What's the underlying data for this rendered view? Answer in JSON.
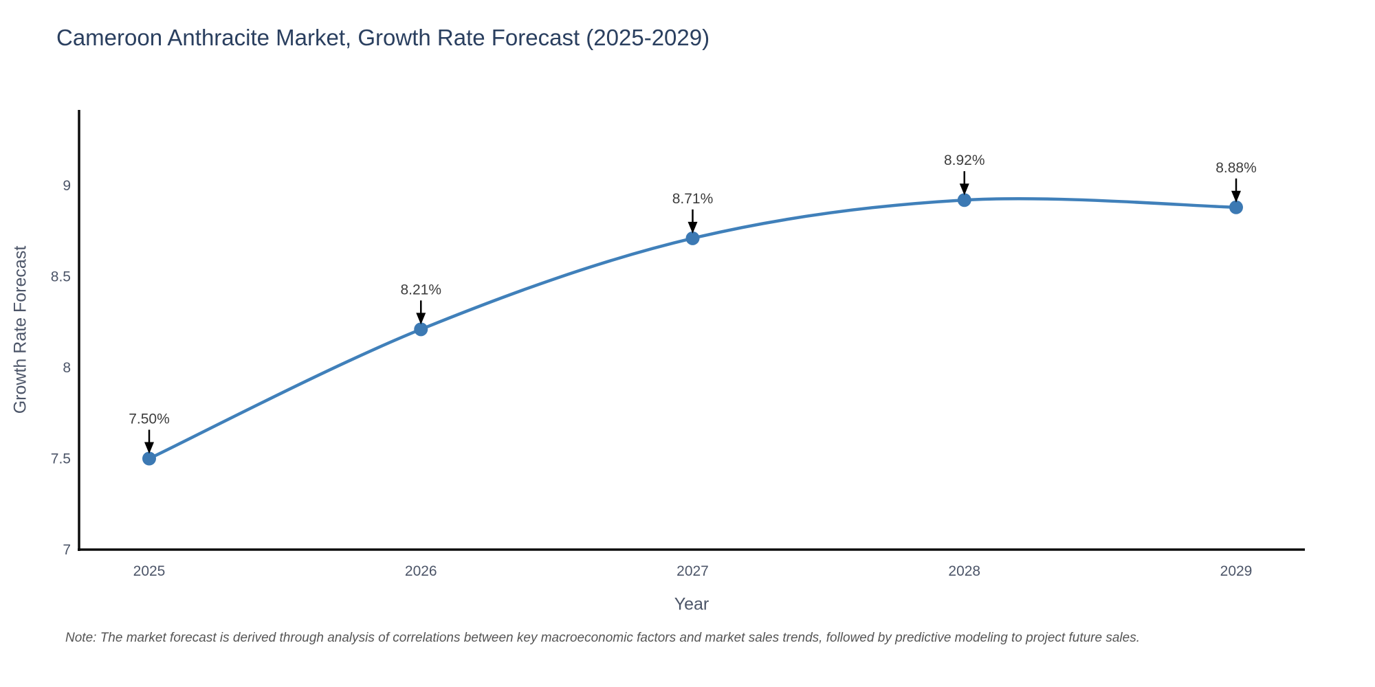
{
  "title": {
    "text": "Cameroon Anthracite Market, Growth Rate Forecast (2025-2029)"
  },
  "note": {
    "text": "Note: The market forecast is derived through analysis of correlations between key macroeconomic factors and market sales trends, followed by predictive modeling to project future sales."
  },
  "chart_data": {
    "type": "line",
    "title": "Cameroon Anthracite Market, Growth Rate Forecast (2025-2029)",
    "xlabel": "Year",
    "ylabel": "Growth Rate Forecast",
    "x": [
      2025,
      2026,
      2027,
      2028,
      2029
    ],
    "series": [
      {
        "name": "Growth Rate Forecast",
        "values": [
          7.5,
          8.21,
          8.71,
          8.92,
          8.88
        ]
      }
    ],
    "annotations": [
      "7.50%",
      "8.21%",
      "8.71%",
      "8.92%",
      "8.88%"
    ],
    "xticks": [
      "2025",
      "2026",
      "2027",
      "2028",
      "2029"
    ],
    "yticks": [
      7,
      7.5,
      8,
      8.5,
      9
    ],
    "ylim": [
      7,
      9.4
    ],
    "grid": false,
    "legend": "none",
    "line_shape": "spline",
    "colors": {
      "line": "#4080ba",
      "marker": "#3c79b3",
      "axis_line": "#0d0d0d",
      "tick_text": "#4c5568",
      "annotation_text": "#3d3d3d",
      "arrow": "#000000",
      "title_text": "#2a3f5f",
      "note_text": "#555555",
      "background": "#ffffff"
    }
  }
}
